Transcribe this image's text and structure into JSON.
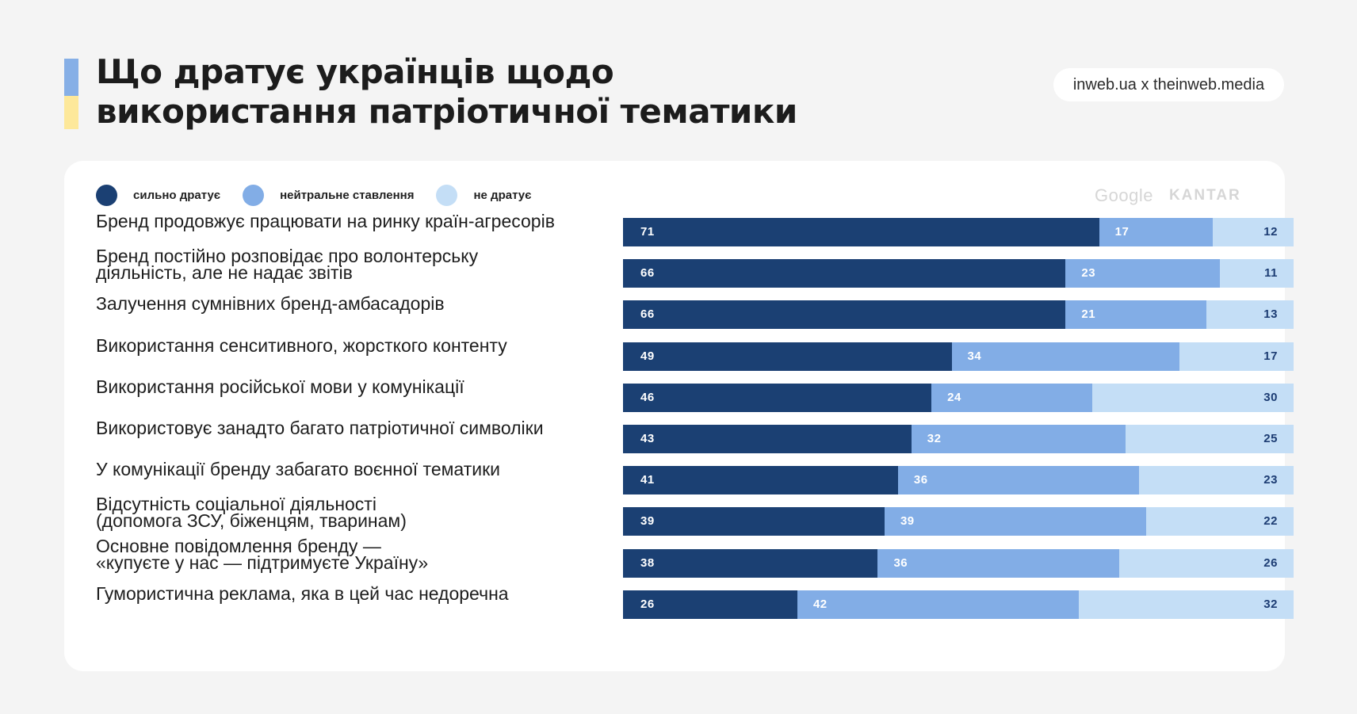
{
  "header": {
    "title_line1": "Що дратує українців щодо",
    "title_line2": "використання патріотичної тематики",
    "source": "inweb.ua x theinweb.media",
    "accent_colors": [
      "#86afe6",
      "#fde89a"
    ]
  },
  "logos": {
    "google": "Google",
    "kantar": "KANTAR"
  },
  "chart_data": {
    "type": "bar",
    "orientation": "horizontal",
    "stacked": true,
    "unit": "%",
    "xlim": [
      0,
      100
    ],
    "legend_position": "top-left",
    "series": [
      {
        "name": "сильно дратує",
        "color": "#1b4073",
        "values": [
          71,
          66,
          66,
          49,
          46,
          43,
          41,
          39,
          38,
          26
        ]
      },
      {
        "name": "нейтральне ставлення",
        "color": "#82ade6",
        "values": [
          17,
          23,
          21,
          34,
          24,
          32,
          36,
          39,
          36,
          42
        ]
      },
      {
        "name": "не дратує",
        "color": "#c4def6",
        "values": [
          12,
          11,
          13,
          17,
          30,
          25,
          23,
          22,
          26,
          32
        ]
      }
    ],
    "categories": [
      [
        "Бренд продовжує працювати на ринку країн-агресорів"
      ],
      [
        "Бренд постійно розповідає про волонтерську",
        "діяльність, але не надає звітів"
      ],
      [
        "Залучення сумнівних бренд-амбасадорів"
      ],
      [
        "Використання сенситивного, жорсткого контенту"
      ],
      [
        "Використання російської мови у комунікації"
      ],
      [
        "Використовує занадто багато патріотичної символіки"
      ],
      [
        "У комунікації бренду забагато воєнної тематики"
      ],
      [
        "Відсутність соціальної діяльності",
        "(допомога ЗСУ, біженцям, тваринам)"
      ],
      [
        "Основне повідомлення бренду —",
        "«купуєте у нас — підтримуєте Україну»"
      ],
      [
        "Гумористична реклама, яка в цей час недоречна"
      ]
    ]
  }
}
